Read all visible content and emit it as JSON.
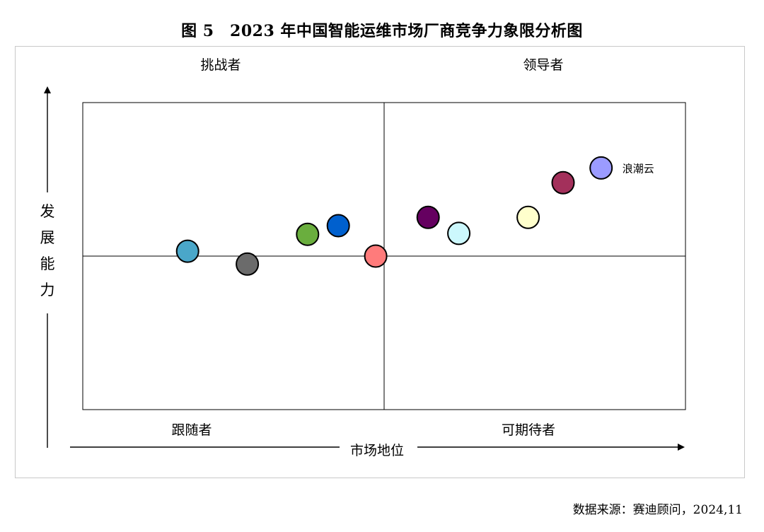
{
  "title": "图 5　2023 年中国智能运维市场厂商竞争力象限分析图",
  "source": "数据来源：赛迪顾问，2024,11",
  "chart_data": {
    "type": "scatter",
    "title": "图 5　2023 年中国智能运维市场厂商竞争力象限分析图",
    "xlabel": "市场地位",
    "ylabel": "发展能力",
    "xlim": [
      0,
      100
    ],
    "ylim": [
      0,
      100
    ],
    "quadrants": {
      "top_left": "挑战者",
      "top_right": "领导者",
      "bottom_left": "跟随者",
      "bottom_right": "可期待者"
    },
    "points": [
      {
        "x": 17.4,
        "y": 1.6,
        "color": "#4AA7C9",
        "label": ""
      },
      {
        "x": 27.3,
        "y": -2.6,
        "color": "#6B6B6B",
        "label": ""
      },
      {
        "x": 37.3,
        "y": 7.1,
        "color": "#6AAE3E",
        "label": ""
      },
      {
        "x": 42.4,
        "y": 9.9,
        "color": "#0060CE",
        "label": ""
      },
      {
        "x": 48.6,
        "y": 0.0,
        "color": "#FF7B7B",
        "label": ""
      },
      {
        "x": 57.3,
        "y": 12.6,
        "color": "#650060",
        "label": ""
      },
      {
        "x": 62.4,
        "y": 7.4,
        "color": "#CCF8FD",
        "label": ""
      },
      {
        "x": 73.9,
        "y": 12.6,
        "color": "#FFFFCC",
        "label": ""
      },
      {
        "x": 79.7,
        "y": 23.9,
        "color": "#A3305B",
        "label": ""
      },
      {
        "x": 86.0,
        "y": 28.7,
        "color": "#9B9BFF",
        "label": "浪潮云"
      }
    ]
  }
}
